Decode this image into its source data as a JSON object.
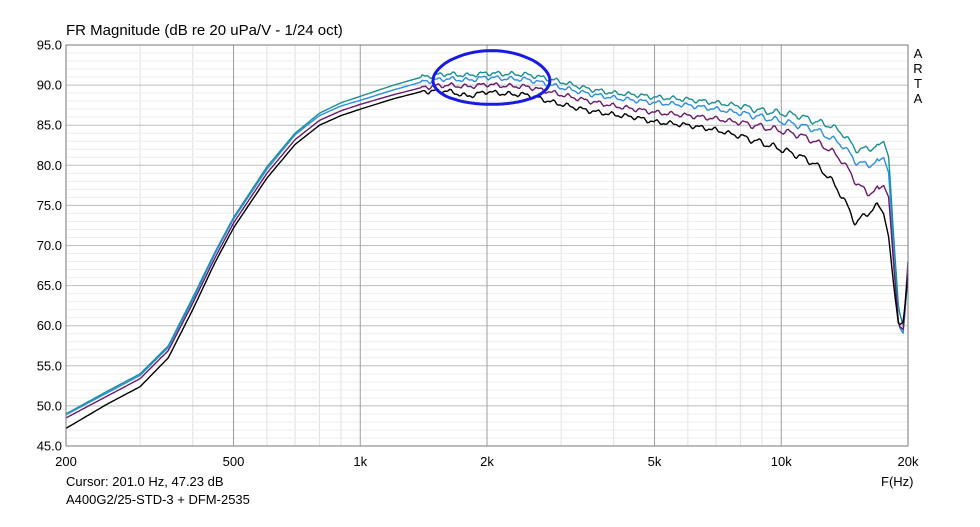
{
  "title": "FR Magnitude (dB re 20 uPa/V - 1/24 oct)",
  "brand": "ARTA",
  "cursor_readout": "Cursor: 201.0 Hz, 47.23 dB",
  "measurement_label": "A400G2/25-STD-3 + DFM-2535",
  "x_unit_label": "F(Hz)",
  "chart_data": {
    "type": "line",
    "title": "FR Magnitude (dB re 20 uPa/V - 1/24 oct)",
    "xlabel": "F(Hz)",
    "ylabel": "",
    "xscale": "log",
    "xlim": [
      200,
      20000
    ],
    "ylim": [
      45,
      95
    ],
    "grid": true,
    "y_ticks": [
      "95.0",
      "90.0",
      "85.0",
      "80.0",
      "75.0",
      "70.0",
      "65.0",
      "60.0",
      "55.0",
      "50.0",
      "45.0"
    ],
    "x_ticks": [
      {
        "value": 200,
        "label": "200"
      },
      {
        "value": 500,
        "label": "500"
      },
      {
        "value": 1000,
        "label": "1k"
      },
      {
        "value": 2000,
        "label": "2k"
      },
      {
        "value": 5000,
        "label": "5k"
      },
      {
        "value": 10000,
        "label": "10k"
      },
      {
        "value": 20000,
        "label": "20k"
      }
    ],
    "series": [
      {
        "color": "#1a8f8f",
        "points": [
          [
            200,
            49.0
          ],
          [
            250,
            51.8
          ],
          [
            300,
            54.0
          ],
          [
            350,
            57.5
          ],
          [
            400,
            63.5
          ],
          [
            450,
            69.0
          ],
          [
            500,
            73.5
          ],
          [
            600,
            79.8
          ],
          [
            700,
            84.0
          ],
          [
            800,
            86.5
          ],
          [
            900,
            87.8
          ],
          [
            1000,
            88.6
          ],
          [
            1200,
            90.0
          ],
          [
            1400,
            91.0
          ],
          [
            1600,
            91.4
          ],
          [
            1800,
            91.2
          ],
          [
            2000,
            91.5
          ],
          [
            2200,
            91.4
          ],
          [
            2500,
            91.3
          ],
          [
            2800,
            90.8
          ],
          [
            3000,
            90.4
          ],
          [
            3500,
            89.5
          ],
          [
            4000,
            89.0
          ],
          [
            4500,
            88.8
          ],
          [
            5000,
            88.5
          ],
          [
            6000,
            88.2
          ],
          [
            7000,
            87.8
          ],
          [
            8000,
            87.4
          ],
          [
            9000,
            86.8
          ],
          [
            10000,
            86.5
          ],
          [
            11000,
            86.2
          ],
          [
            12000,
            85.5
          ],
          [
            13000,
            85.0
          ],
          [
            14000,
            84.0
          ],
          [
            15000,
            82.0
          ],
          [
            16000,
            82.0
          ],
          [
            17000,
            82.5
          ],
          [
            17500,
            83.0
          ],
          [
            18000,
            81.0
          ],
          [
            18500,
            71.0
          ],
          [
            19000,
            62.0
          ],
          [
            19500,
            60.0
          ],
          [
            20000,
            66.0
          ]
        ]
      },
      {
        "color": "#2a8fe0",
        "points": [
          [
            200,
            48.9
          ],
          [
            250,
            51.6
          ],
          [
            300,
            53.8
          ],
          [
            350,
            57.3
          ],
          [
            400,
            63.2
          ],
          [
            450,
            68.8
          ],
          [
            500,
            73.3
          ],
          [
            600,
            79.5
          ],
          [
            700,
            83.8
          ],
          [
            800,
            86.2
          ],
          [
            900,
            87.4
          ],
          [
            1000,
            88.1
          ],
          [
            1200,
            89.4
          ],
          [
            1400,
            90.4
          ],
          [
            1600,
            90.8
          ],
          [
            1800,
            90.6
          ],
          [
            2000,
            91.0
          ],
          [
            2200,
            90.8
          ],
          [
            2500,
            90.7
          ],
          [
            2800,
            90.1
          ],
          [
            3000,
            89.7
          ],
          [
            3500,
            88.9
          ],
          [
            4000,
            88.4
          ],
          [
            4500,
            88.1
          ],
          [
            5000,
            87.8
          ],
          [
            6000,
            87.5
          ],
          [
            7000,
            87.0
          ],
          [
            8000,
            86.5
          ],
          [
            9000,
            86.0
          ],
          [
            10000,
            85.5
          ],
          [
            11000,
            85.0
          ],
          [
            12000,
            84.5
          ],
          [
            13000,
            83.5
          ],
          [
            14000,
            82.5
          ],
          [
            15000,
            80.5
          ],
          [
            16000,
            80.0
          ],
          [
            17000,
            80.5
          ],
          [
            17500,
            81.0
          ],
          [
            18000,
            79.0
          ],
          [
            18500,
            69.0
          ],
          [
            19000,
            60.0
          ],
          [
            19500,
            59.0
          ],
          [
            20000,
            67.0
          ]
        ]
      },
      {
        "color": "#6a1a6a",
        "points": [
          [
            200,
            48.5
          ],
          [
            250,
            51.2
          ],
          [
            300,
            53.4
          ],
          [
            350,
            56.9
          ],
          [
            400,
            62.8
          ],
          [
            450,
            68.3
          ],
          [
            500,
            72.8
          ],
          [
            600,
            79.0
          ],
          [
            700,
            83.2
          ],
          [
            800,
            85.6
          ],
          [
            900,
            86.8
          ],
          [
            1000,
            87.6
          ],
          [
            1200,
            88.8
          ],
          [
            1400,
            89.7
          ],
          [
            1600,
            90.0
          ],
          [
            1800,
            89.8
          ],
          [
            2000,
            90.1
          ],
          [
            2200,
            89.9
          ],
          [
            2500,
            89.8
          ],
          [
            2800,
            89.2
          ],
          [
            3000,
            88.8
          ],
          [
            3500,
            88.0
          ],
          [
            4000,
            87.4
          ],
          [
            4500,
            87.0
          ],
          [
            5000,
            86.6
          ],
          [
            6000,
            86.2
          ],
          [
            7000,
            85.8
          ],
          [
            8000,
            85.3
          ],
          [
            9000,
            84.8
          ],
          [
            10000,
            84.3
          ],
          [
            11000,
            83.8
          ],
          [
            12000,
            83.0
          ],
          [
            13000,
            82.0
          ],
          [
            14000,
            80.5
          ],
          [
            15000,
            78.0
          ],
          [
            16000,
            76.5
          ],
          [
            17000,
            77.0
          ],
          [
            17500,
            77.5
          ],
          [
            18000,
            76.0
          ],
          [
            18500,
            67.5
          ],
          [
            19000,
            60.0
          ],
          [
            19500,
            59.5
          ],
          [
            20000,
            68.0
          ]
        ]
      },
      {
        "color": "#000000",
        "points": [
          [
            200,
            47.2
          ],
          [
            250,
            50.2
          ],
          [
            300,
            52.4
          ],
          [
            350,
            56.0
          ],
          [
            400,
            62.0
          ],
          [
            450,
            67.7
          ],
          [
            500,
            72.2
          ],
          [
            600,
            78.4
          ],
          [
            700,
            82.6
          ],
          [
            800,
            85.0
          ],
          [
            900,
            86.2
          ],
          [
            1000,
            87.0
          ],
          [
            1200,
            88.3
          ],
          [
            1400,
            89.2
          ],
          [
            1600,
            89.3
          ],
          [
            1800,
            88.6
          ],
          [
            2000,
            89.2
          ],
          [
            2200,
            88.9
          ],
          [
            2500,
            88.8
          ],
          [
            2800,
            88.0
          ],
          [
            3000,
            87.6
          ],
          [
            3500,
            86.8
          ],
          [
            4000,
            86.3
          ],
          [
            4500,
            86.0
          ],
          [
            5000,
            85.4
          ],
          [
            6000,
            85.0
          ],
          [
            7000,
            84.4
          ],
          [
            8000,
            83.6
          ],
          [
            9000,
            82.8
          ],
          [
            10000,
            82.0
          ],
          [
            11000,
            81.2
          ],
          [
            12000,
            80.2
          ],
          [
            13000,
            78.5
          ],
          [
            14000,
            76.0
          ],
          [
            15000,
            72.8
          ],
          [
            16000,
            74.0
          ],
          [
            17000,
            75.0
          ],
          [
            17500,
            74.0
          ],
          [
            18000,
            71.0
          ],
          [
            18500,
            65.0
          ],
          [
            19000,
            60.0
          ],
          [
            19500,
            60.5
          ],
          [
            20000,
            66.5
          ]
        ]
      }
    ],
    "annotation": {
      "shape": "hand-drawn ellipse",
      "color": "#1a1ae6",
      "x_range": [
        1500,
        2800
      ],
      "y_range": [
        87.5,
        94.2
      ]
    }
  }
}
